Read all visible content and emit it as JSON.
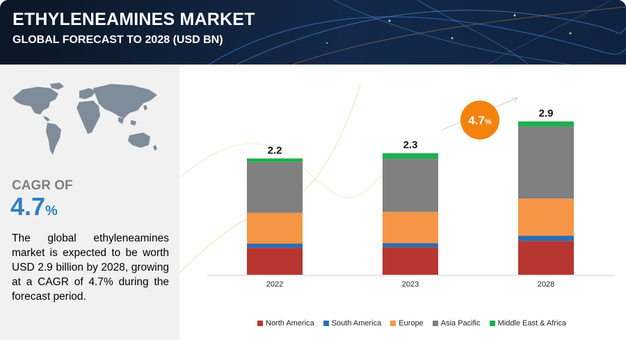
{
  "header": {
    "title": "ETHYLENEAMINES MARKET",
    "subtitle": "GLOBAL FORECAST TO 2028 (USD BN)"
  },
  "summary": {
    "cagr_label": "CAGR OF",
    "cagr_number": "4.7",
    "cagr_unit": "%",
    "description": "The global ethyleneamines market is expected to be worth USD 2.9 billion by 2028, growing at a CAGR of 4.7% during the forecast period.",
    "map_icon": "world-map-icon"
  },
  "colors": {
    "North America": "#b7362f",
    "South America": "#2e6eb5",
    "Europe": "#f79646",
    "Asia Pacific": "#808080",
    "Middle East & Africa": "#1faf4f",
    "cagr_badge": "#f5820d",
    "cagr_accent": "#2f7fc1"
  },
  "chart_data": {
    "type": "bar",
    "stacked": true,
    "categories": [
      "2022",
      "2023",
      "2028"
    ],
    "totals": [
      "2.2",
      "2.3",
      "2.9"
    ],
    "series": [
      {
        "name": "North America",
        "values": [
          0.51,
          0.52,
          0.64
        ]
      },
      {
        "name": "South America",
        "values": [
          0.08,
          0.08,
          0.1
        ]
      },
      {
        "name": "Europe",
        "values": [
          0.58,
          0.59,
          0.7
        ]
      },
      {
        "name": "Asia Pacific",
        "values": [
          0.96,
          1.0,
          1.36
        ]
      },
      {
        "name": "Middle East & Africa",
        "values": [
          0.07,
          0.11,
          0.1
        ]
      }
    ],
    "ylim": [
      0,
      2.9
    ],
    "annotation": {
      "value": "4.7",
      "unit": "%"
    },
    "legend_position": "bottom",
    "grid": false
  }
}
